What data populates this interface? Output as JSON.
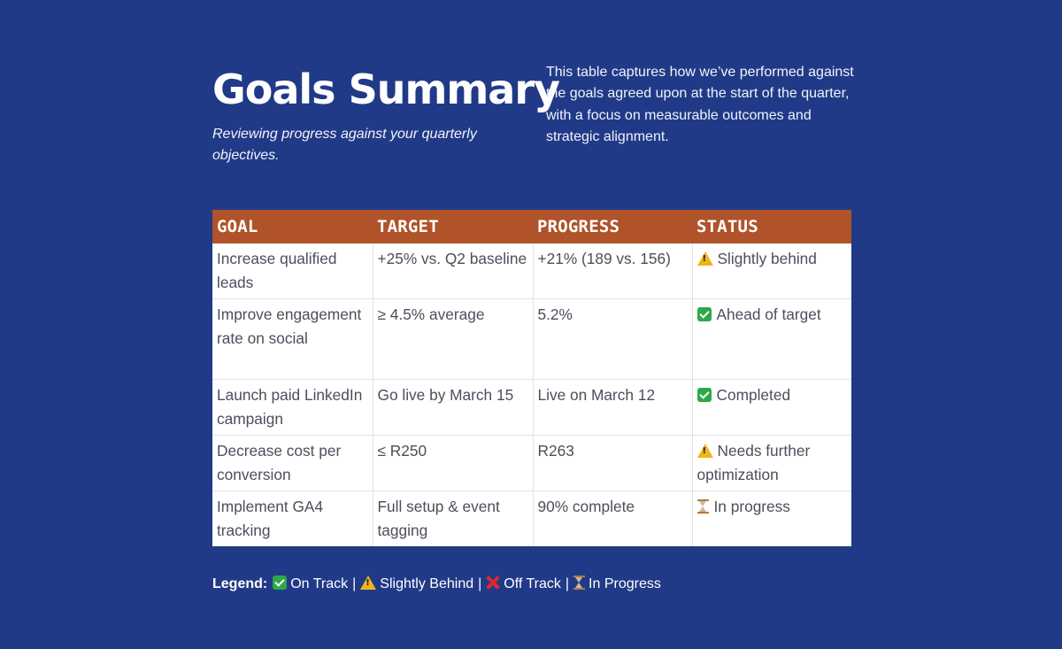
{
  "header": {
    "title": "Goals Summary",
    "subtitle": "Reviewing progress against your quarterly objectives.",
    "intro": "This table captures how we’ve performed against the goals agreed upon at the start of the quarter, with a focus on measurable outcomes and strategic alignment."
  },
  "table": {
    "columns": [
      "GOAL",
      "TARGET",
      "PROGRESS",
      "STATUS"
    ],
    "header_color": "#b0532a",
    "rows": [
      {
        "goal": "Increase qualified leads",
        "target": "+25% vs. Q2 baseline",
        "progress": "+21% (189 vs. 156)",
        "status_icon": "warning-icon",
        "status": "Slightly behind"
      },
      {
        "goal": "Improve engagement rate on social",
        "target": "≥ 4.5% average",
        "progress": "5.2%",
        "status_icon": "check-icon",
        "status": "Ahead of target"
      },
      {
        "goal": "Launch paid LinkedIn campaign",
        "target": "Go live by March 15",
        "progress": "Live on March 12",
        "status_icon": "check-icon",
        "status": "Completed"
      },
      {
        "goal": "Decrease cost per conversion",
        "target": "≤ R250",
        "progress": "R263",
        "status_icon": "warning-icon",
        "status": "Needs further optimization"
      },
      {
        "goal": "Implement GA4 tracking",
        "target": "Full setup & event tagging",
        "progress": "90% complete",
        "status_icon": "hourglass-icon",
        "status": "In progress"
      }
    ]
  },
  "legend": {
    "label": "Legend:",
    "items": [
      {
        "icon": "check-icon",
        "label": "On Track"
      },
      {
        "icon": "warning-icon",
        "label": "Slightly Behind"
      },
      {
        "icon": "cross-icon",
        "label": "Off Track"
      },
      {
        "icon": "hourglass-icon",
        "label": "In Progress"
      }
    ],
    "separator": "|"
  },
  "colors": {
    "background": "#213a87",
    "header_row": "#b0532a",
    "on_track": "#2ea84a",
    "slightly_behind": "#f2b41b",
    "off_track": "#e0282c"
  }
}
